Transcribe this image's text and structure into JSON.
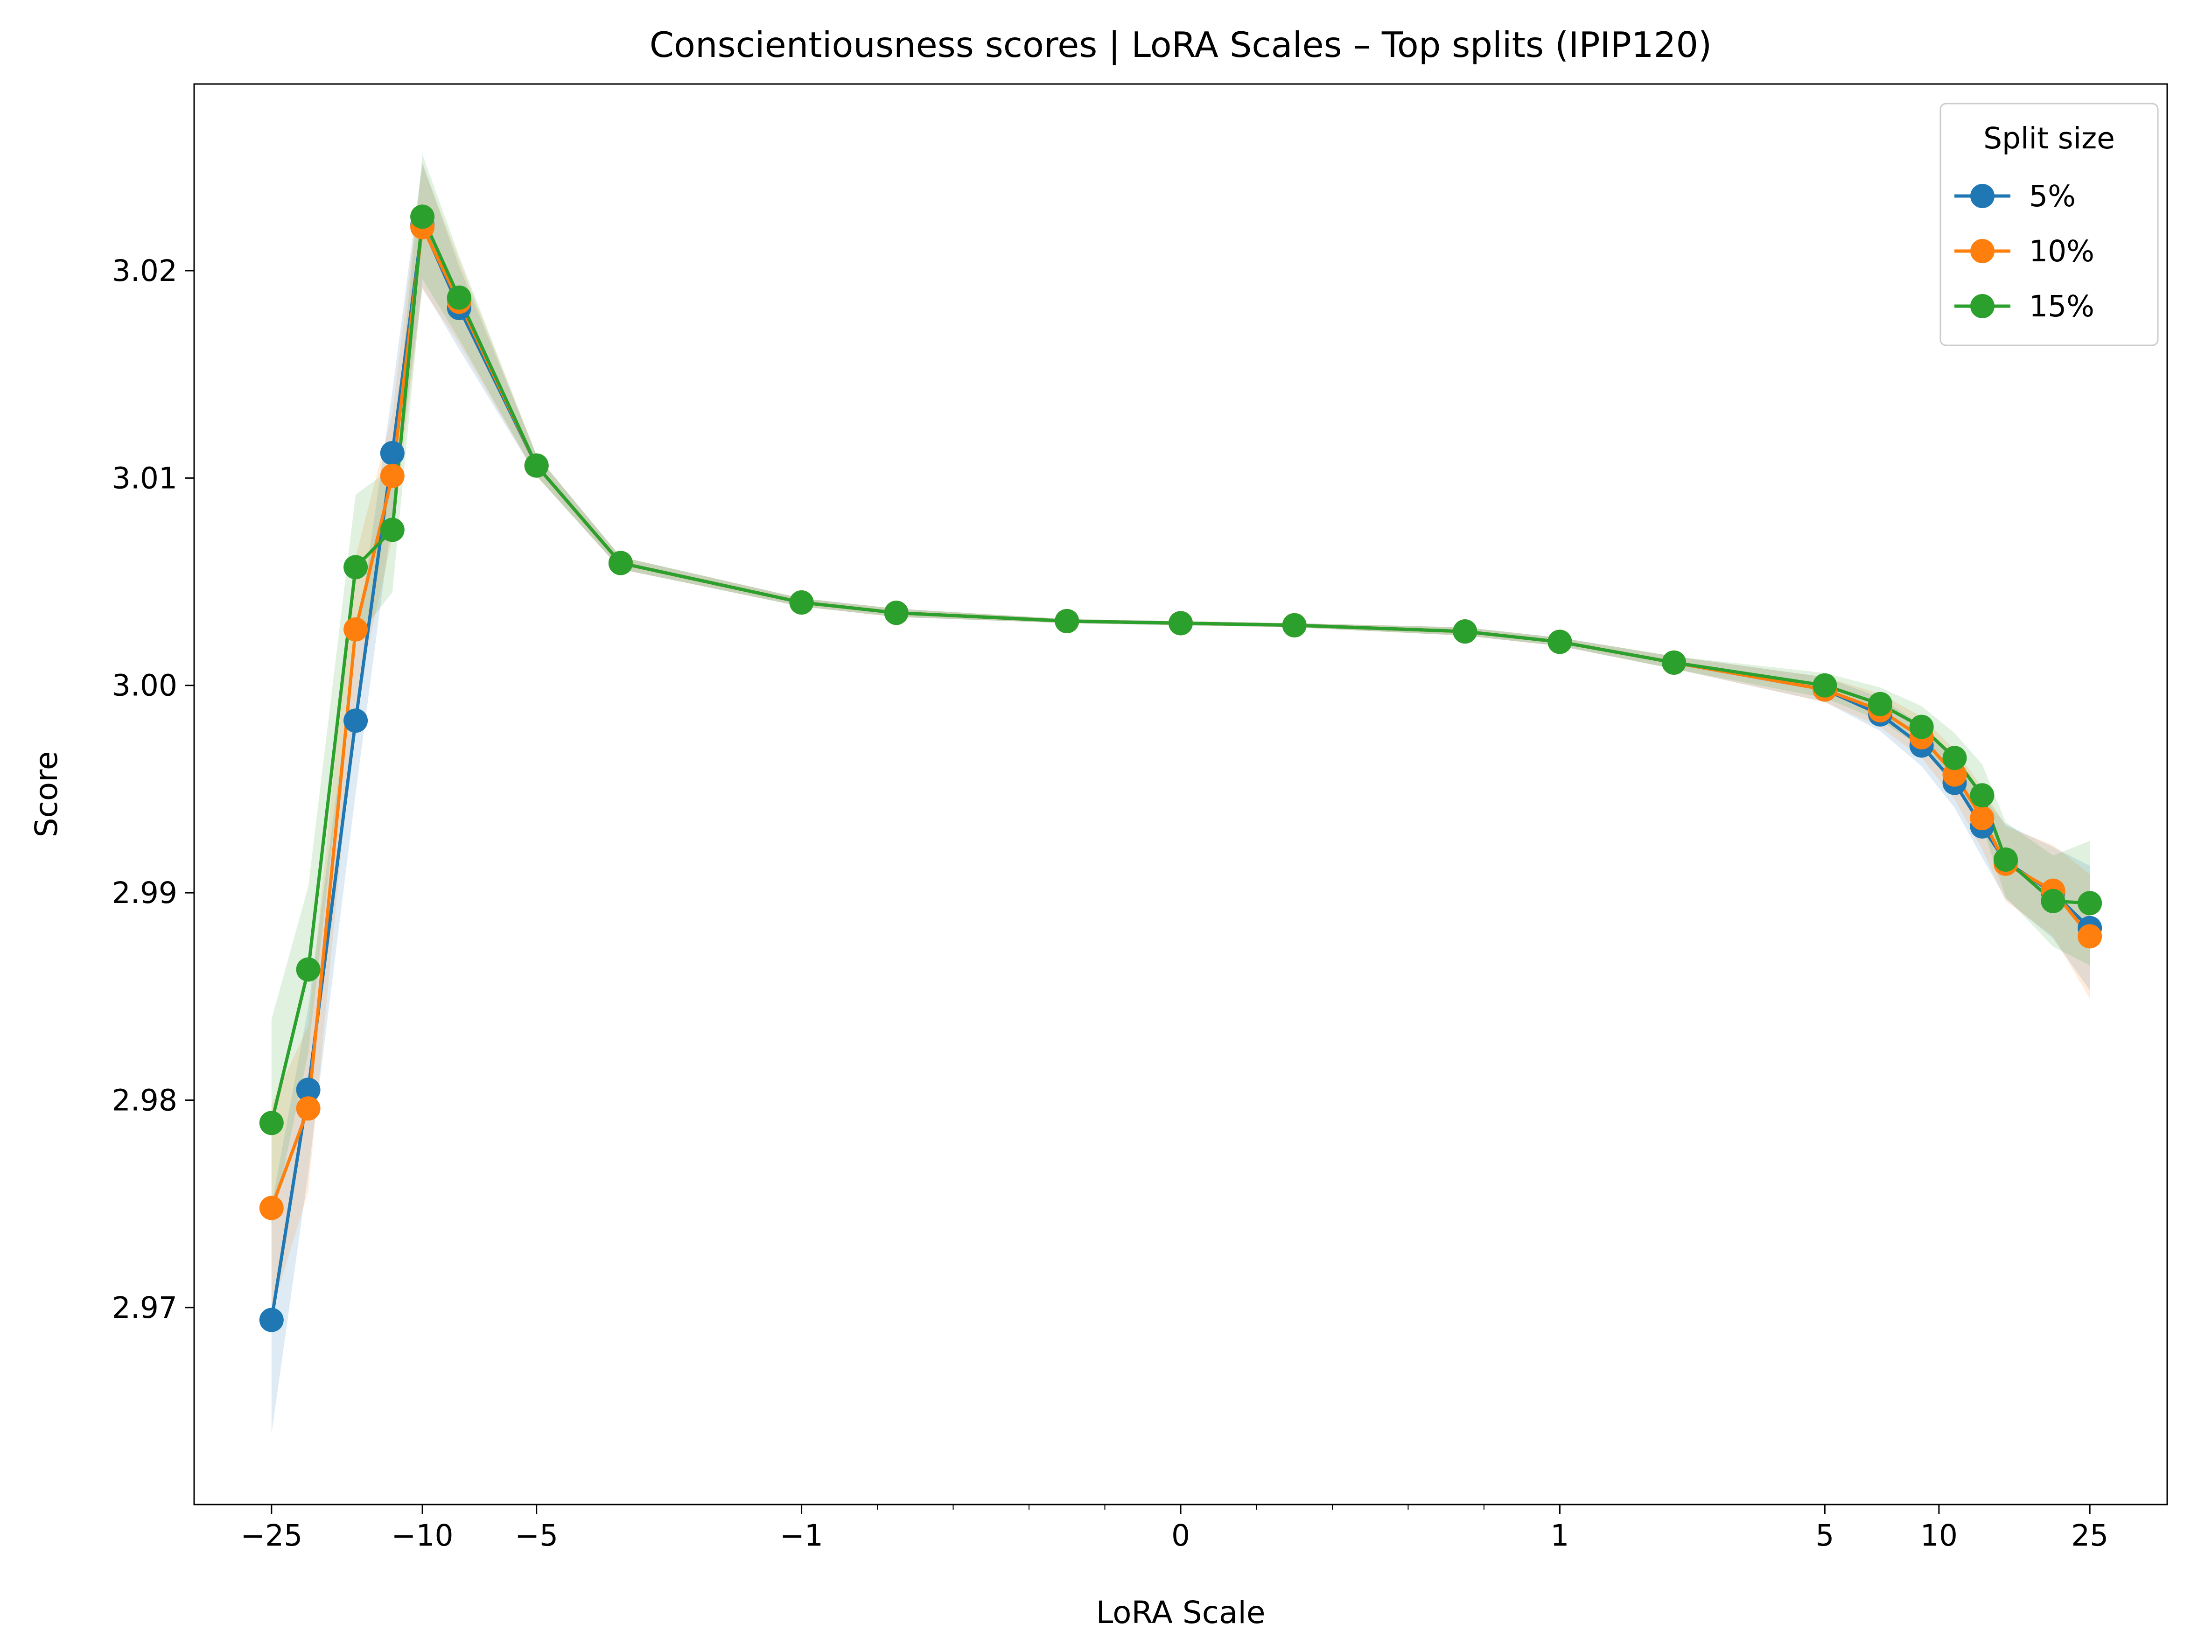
{
  "chart_data": {
    "type": "line",
    "title": "Conscientiousness scores | LoRA Scales – Top splits (IPIP120)",
    "xlabel": "LoRA Scale",
    "ylabel": "Score",
    "x_scale": "symlog",
    "xlim": [
      -40,
      40
    ],
    "ylim": [
      2.9605,
      3.029
    ],
    "x_ticks": [
      -25,
      -10,
      -5,
      -1,
      0,
      1,
      5,
      10,
      25
    ],
    "x_tick_labels": [
      "−25",
      "−10",
      "−5",
      "−1",
      "0",
      "1",
      "5",
      "10",
      "25"
    ],
    "y_ticks": [
      2.97,
      2.98,
      2.99,
      3.0,
      3.01,
      3.02
    ],
    "y_tick_labels": [
      "2.97",
      "2.98",
      "2.99",
      "3.00",
      "3.01",
      "3.02"
    ],
    "grid": false,
    "legend": {
      "title": "Split size",
      "position": "top-right"
    },
    "x": [
      -25,
      -20,
      -15,
      -12,
      -10,
      -8,
      -5,
      -3,
      -1,
      -0.75,
      -0.3,
      0,
      0.3,
      0.75,
      1,
      2,
      5,
      7,
      9,
      11,
      13,
      15,
      20,
      25
    ],
    "series": [
      {
        "name": "5%",
        "color": "#1f77b4",
        "values": [
          2.9694,
          2.9805,
          2.9983,
          3.0112,
          3.0222,
          3.0182,
          3.0106,
          3.0059,
          3.004,
          3.0035,
          3.0031,
          3.003,
          3.0029,
          3.0026,
          3.0021,
          3.0011,
          2.9998,
          2.9986,
          2.9971,
          2.9953,
          2.9932,
          2.9915,
          2.99,
          2.9883
        ],
        "band": [
          0.0055,
          0.004,
          0.0035,
          0.003,
          0.003,
          0.002,
          0.0005,
          0.0003,
          0.0002,
          0.0002,
          0.0001,
          0.0001,
          0.0001,
          0.0002,
          0.0002,
          0.0003,
          0.0006,
          0.0008,
          0.001,
          0.0012,
          0.0015,
          0.0018,
          0.0022,
          0.003
        ]
      },
      {
        "name": "10%",
        "color": "#ff7f0e",
        "values": [
          2.9748,
          2.9796,
          3.0027,
          3.0101,
          3.0221,
          3.0185,
          3.0106,
          3.0059,
          3.004,
          3.0035,
          3.0031,
          3.003,
          3.0029,
          3.0026,
          3.0021,
          3.0011,
          2.9998,
          2.9988,
          2.9975,
          2.9957,
          2.9936,
          2.9914,
          2.9901,
          2.9879
        ],
        "band": [
          0.005,
          0.004,
          0.0035,
          0.003,
          0.003,
          0.002,
          0.0005,
          0.0003,
          0.0002,
          0.0002,
          0.0001,
          0.0001,
          0.0001,
          0.0002,
          0.0002,
          0.0003,
          0.0006,
          0.0008,
          0.001,
          0.0012,
          0.0015,
          0.0018,
          0.0022,
          0.003
        ]
      },
      {
        "name": "15%",
        "color": "#2ca02c",
        "values": [
          2.9789,
          2.9863,
          3.0057,
          3.0075,
          3.0226,
          3.0187,
          3.0106,
          3.0059,
          3.004,
          3.0035,
          3.0031,
          3.003,
          3.0029,
          3.0026,
          3.0021,
          3.0011,
          3.0,
          2.9991,
          2.998,
          2.9965,
          2.9947,
          2.9916,
          2.9896,
          2.9895
        ],
        "band": [
          0.005,
          0.004,
          0.0035,
          0.003,
          0.003,
          0.002,
          0.0005,
          0.0003,
          0.0002,
          0.0002,
          0.0001,
          0.0001,
          0.0001,
          0.0002,
          0.0002,
          0.0003,
          0.0006,
          0.0008,
          0.001,
          0.0012,
          0.0015,
          0.0018,
          0.0022,
          0.003
        ]
      }
    ]
  }
}
